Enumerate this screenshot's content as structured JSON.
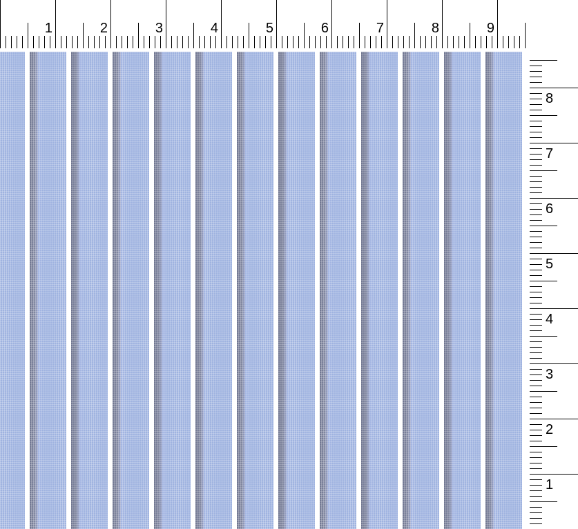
{
  "top_ruler": {
    "labels": [
      "1",
      "2",
      "3",
      "4",
      "5",
      "6",
      "7",
      "8",
      "9"
    ]
  },
  "side_ruler": {
    "labels": [
      "1",
      "2",
      "3",
      "4",
      "5",
      "6",
      "7",
      "8"
    ]
  },
  "fabric": {
    "pattern": "vertical stripes",
    "colors": {
      "base_blue": "#9fb3e0",
      "gap_white": "#ffffff",
      "dark_stripe": "#6f7590"
    }
  }
}
